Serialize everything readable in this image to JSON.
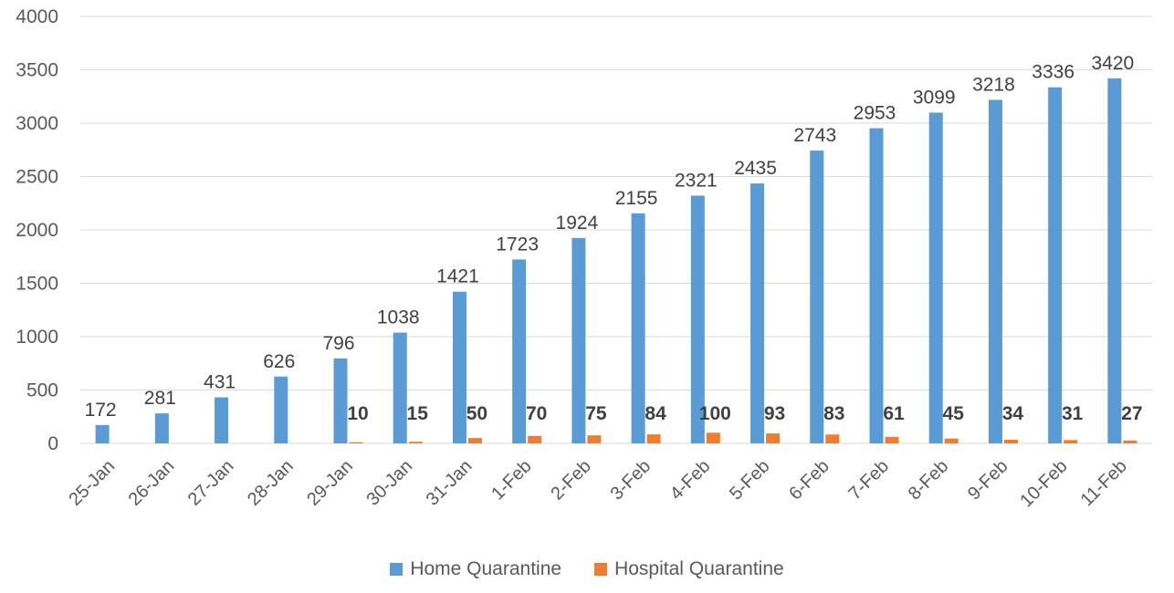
{
  "chart_data": {
    "type": "bar",
    "categories": [
      "25-Jan",
      "26-Jan",
      "27-Jan",
      "28-Jan",
      "29-Jan",
      "30-Jan",
      "31-Jan",
      "1-Feb",
      "2-Feb",
      "3-Feb",
      "4-Feb",
      "5-Feb",
      "6-Feb",
      "7-Feb",
      "8-Feb",
      "9-Feb",
      "10-Feb",
      "11-Feb"
    ],
    "series": [
      {
        "name": "Home Quarantine",
        "color": "#5b9bd5",
        "values": [
          172,
          281,
          431,
          626,
          796,
          1038,
          1421,
          1723,
          1924,
          2155,
          2321,
          2435,
          2743,
          2953,
          3099,
          3218,
          3336,
          3420
        ],
        "labels": [
          "172",
          "281",
          "431",
          "626",
          "796",
          "1038",
          "1421",
          "1723",
          "1924",
          "2155",
          "2321",
          "2435",
          "2743",
          "2953",
          "3099",
          "3218",
          "3336",
          "3420"
        ]
      },
      {
        "name": "Hospital Quarantine",
        "color": "#ed7d31",
        "values": [
          0,
          0,
          0,
          0,
          10,
          15,
          50,
          70,
          75,
          84,
          100,
          93,
          83,
          61,
          45,
          34,
          31,
          27
        ],
        "labels": [
          "",
          "",
          "",
          "",
          "10",
          "15",
          "50",
          "70",
          "75",
          "84",
          "100",
          "93",
          "83",
          "61",
          "45",
          "34",
          "31",
          "27"
        ]
      }
    ],
    "ylim": [
      0,
      4000
    ],
    "yticks": [
      "0",
      "500",
      "1000",
      "1500",
      "2000",
      "2500",
      "3000",
      "3500",
      "4000"
    ],
    "grid": true,
    "legend": "bottom"
  }
}
